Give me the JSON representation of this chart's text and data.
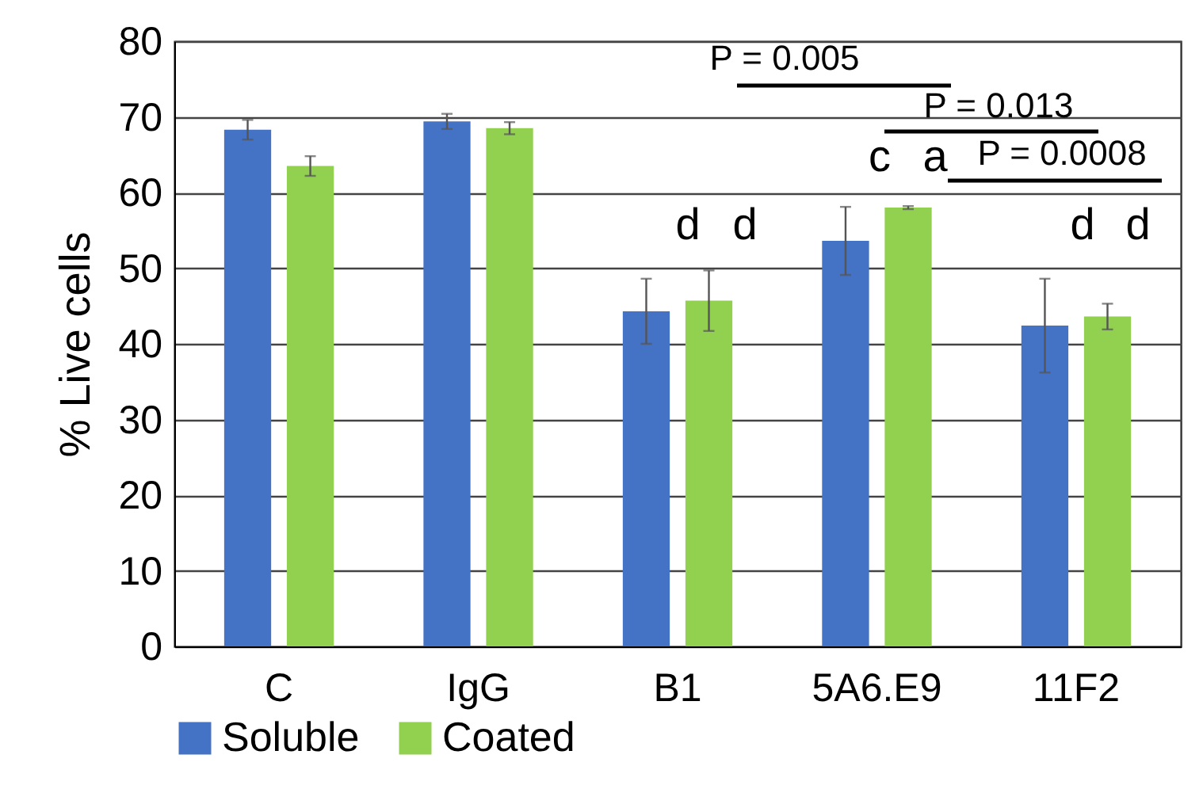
{
  "chart_data": {
    "type": "bar",
    "ylabel": "% Live cells",
    "categories": [
      "C",
      "IgG",
      "B1",
      "5A6.E9",
      "11F2"
    ],
    "series": [
      {
        "name": "Soluble",
        "color": "#4472c4",
        "values": [
          68.3,
          69.4,
          44.3,
          53.6,
          42.4
        ],
        "errors": [
          1.3,
          1.0,
          4.3,
          4.5,
          6.2
        ]
      },
      {
        "name": "Coated",
        "color": "#92d050",
        "values": [
          63.5,
          68.5,
          45.7,
          58.0,
          43.6
        ],
        "errors": [
          1.3,
          0.8,
          4.0,
          0.2,
          1.7
        ]
      }
    ],
    "ylim": [
      0,
      80
    ],
    "yticks": [
      0,
      10,
      20,
      30,
      40,
      50,
      60,
      70,
      80
    ],
    "grid": "y",
    "legend": "bottom",
    "annotations": [
      "P = 0.005",
      "P = 0.013",
      "c",
      "a",
      "P = 0.0008",
      "d",
      "d",
      "d",
      "d"
    ]
  }
}
